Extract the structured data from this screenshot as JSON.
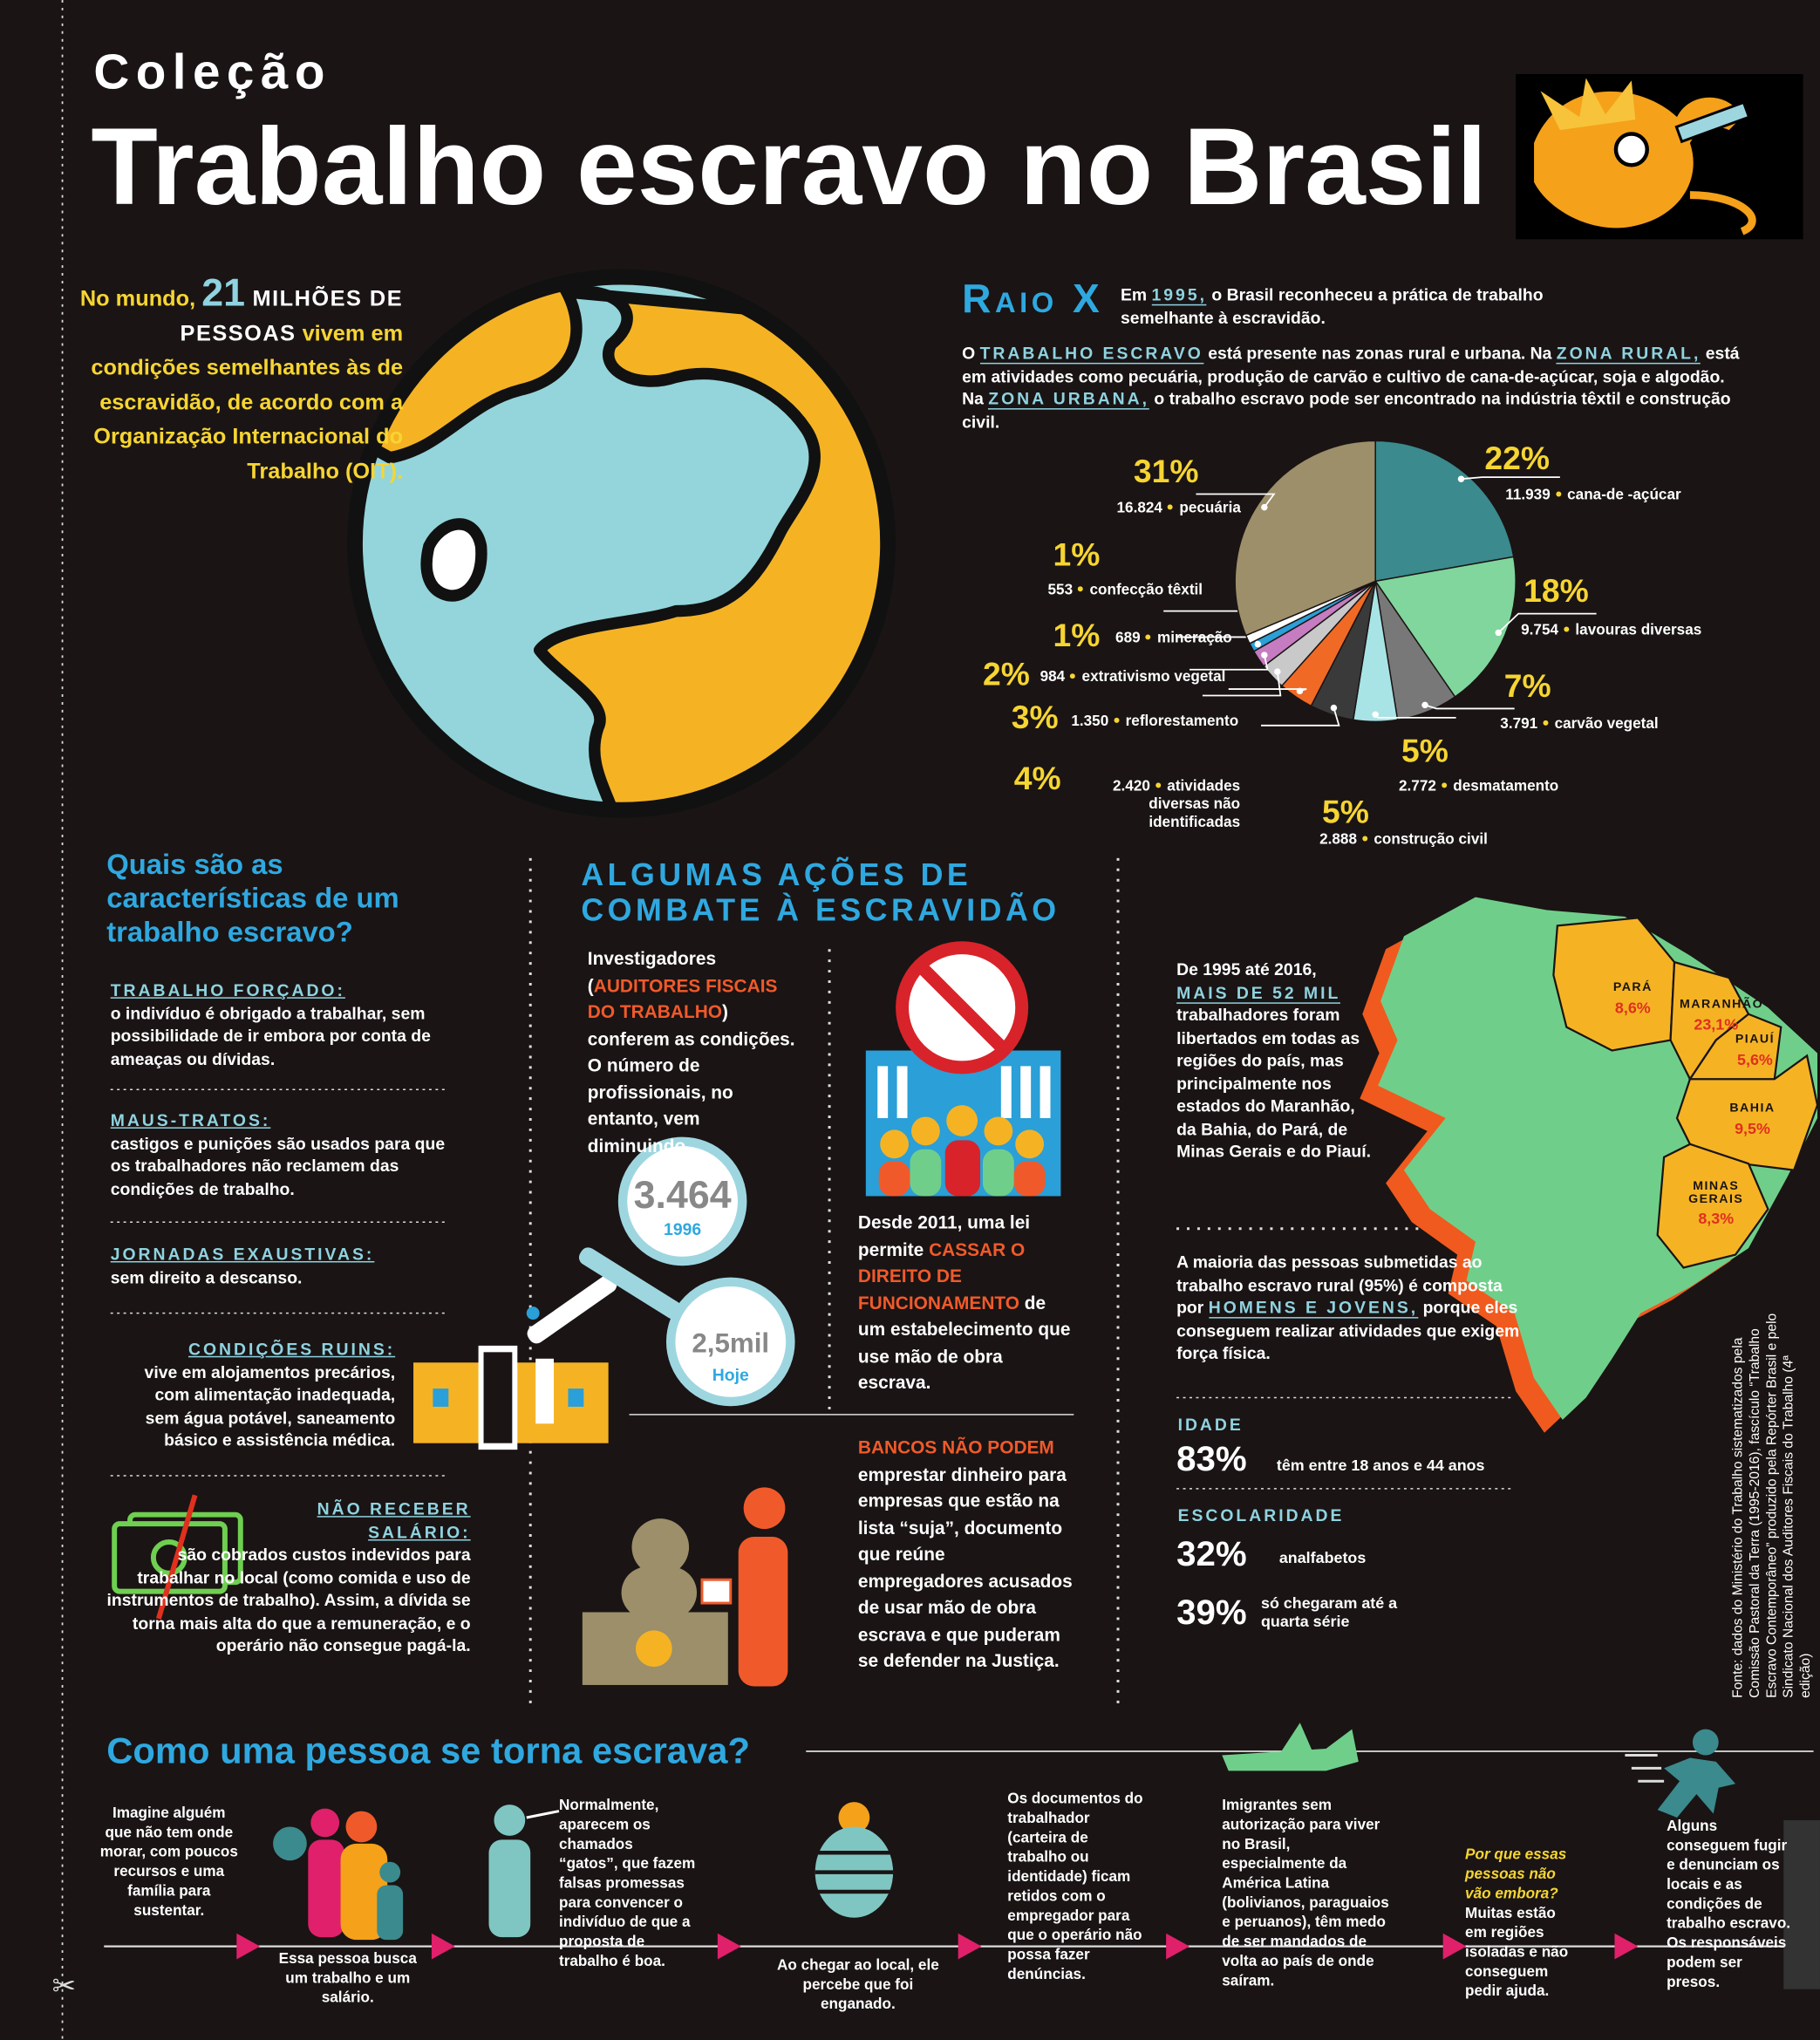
{
  "header": {
    "kicker": "Coleção",
    "title": "Trabalho escravo no Brasil"
  },
  "intro": {
    "a": "No mundo, ",
    "num": "21",
    "b": " MILHÕES DE PESSOAS",
    "c": " vivem em condições semelhantes às de escravidão, de acordo com a Organização Internacional do Trabalho (OIT)."
  },
  "raio_x": {
    "title": "Raio X",
    "p1": [
      "Em ",
      "1995,",
      " o Brasil reconheceu a prática de trabalho semelhante à escravidão."
    ],
    "p2": [
      "O ",
      "TRABALHO ESCRAVO",
      " está presente nas zonas rural e urbana.  Na ",
      "ZONA RURAL,",
      " está em atividades como pecuária, produção de carvão e cultivo de cana-de-açúcar, soja e algodão.  Na ",
      "ZONA URBANA,",
      " o trabalho escravo pode ser encontrado na indústria têxtil e construção civil."
    ]
  },
  "chart_data": {
    "type": "pie",
    "categories": [
      "cana-de -açúcar",
      "lavouras diversas",
      "carvão vegetal",
      "desmatamento",
      "construção civil",
      "atividades diversas não identificadas",
      "reflorestamento",
      "extrativismo vegetal",
      "mineração",
      "confecção têxtil",
      "pecuária"
    ],
    "values": [
      22,
      18,
      7,
      5,
      5,
      4,
      3,
      2,
      1,
      1,
      31
    ],
    "value_labels": [
      "22%",
      "18%",
      "7%",
      "5%",
      "5%",
      "4%",
      "3%",
      "2%",
      "1%",
      "1%",
      "31%"
    ],
    "count_labels": [
      "11.939",
      "9.754",
      "3.791",
      "2.772",
      "2.888",
      "2.420",
      "1.350",
      "984",
      "689",
      "553",
      "16.824"
    ],
    "colors": [
      "#3b8a8d",
      "#80d69c",
      "#787878",
      "#a8e4e6",
      "#3a3a3a",
      "#f06a25",
      "#c9c9c9",
      "#c57cc0",
      "#2a9fd8",
      "#ffffff",
      "#9c8f6a"
    ]
  },
  "characteristics": {
    "title": "Quais são as características de um trabalho escravo?",
    "items": [
      {
        "term": "TRABALHO FORÇADO:",
        "text": "o indivíduo é obrigado a trabalhar, sem possibilidade de ir embora por conta de ameaças ou dívidas."
      },
      {
        "term": "MAUS-TRATOS:",
        "text": "castigos e punições são usados para que os trabalhadores não reclamem das condições de trabalho."
      },
      {
        "term": "JORNADAS EXAUSTIVAS:",
        "text": "sem direito a descanso."
      },
      {
        "term": "CONDIÇÕES RUINS:",
        "text": "vive em alojamentos precários, com alimentação inadequada, sem água potável, saneamento básico e assistência médica."
      },
      {
        "term": "NÃO RECEBER SALÁRIO:",
        "text": "são cobrados custos indevidos para trabalhar no local (como comida e uso de instrumentos de trabalho). Assim, a dívida se torna mais alta do que a remuneração, e o operário não consegue pagá-la."
      }
    ]
  },
  "actions": {
    "title": "ALGUMAS AÇÕES DE COMBATE À ESCRAVIDÃO",
    "investigators": [
      "Investigadores (",
      "AUDITORES FISCAIS DO TRABALHO",
      ") conferem as condições. O número de profissionais, no entanto, vem diminuindo."
    ],
    "count_1996": "3.464",
    "year_1996": "1996",
    "count_today": "2,5mil",
    "today": "Hoje",
    "law": [
      "Desde 2011, uma lei permite ",
      "CASSAR O DIREITO DE FUNCIONAMENTO",
      " de um estabelecimento que use mão de obra escrava."
    ],
    "banks": {
      "highlight": "BANCOS NÃO PODEM",
      "text": " emprestar dinheiro para empresas que estão na lista “suja”, documento que reúne empregadores acusados de usar mão de obra escrava e que puderam se defender na Justiça."
    }
  },
  "brazil": {
    "p1": [
      "De 1995 até 2016, ",
      "MAIS DE 52 MIL",
      " trabalhadores foram libertados em todas as regiões do país, mas principalmente nos estados do Maranhão, da Bahia, do Pará, de Minas Gerais e do Piauí."
    ],
    "p2": [
      "A maioria das pessoas submetidas ao trabalho escravo rural (95%) é composta por ",
      "HOMENS E JOVENS,",
      " porque eles conseguem realizar  atividades que exigem força física."
    ],
    "states": [
      {
        "name": "PARÁ",
        "pct": "8,6%"
      },
      {
        "name": "MARANHÃO",
        "pct": "23,1%"
      },
      {
        "name": "PIAUÍ",
        "pct": "5,6%"
      },
      {
        "name": "BAHIA",
        "pct": "9,5%"
      },
      {
        "name": "MINAS GERAIS",
        "pct": "8,3%"
      }
    ],
    "age": {
      "title": "IDADE",
      "pct": "83%",
      "text": "têm entre 18 anos e 44 anos"
    },
    "education": {
      "title": "ESCOLARIDADE",
      "items": [
        {
          "pct": "32%",
          "text": "analfabetos"
        },
        {
          "pct": "39%",
          "text": "só chegaram até a quarta série"
        }
      ]
    },
    "source": "Fonte: dados do Ministério do Trabalho sistematizados pela Comissão Pastoral da Terra (1995-2016), fascículo “Trabalho Escravo Contemporâneo” produzido pela Repórter Brasil e pelo Sindicato Nacional dos Auditores Fiscais do Trabalho (4ª edição)"
  },
  "process": {
    "title": "Como uma pessoa se torna escrava?",
    "steps": [
      "Imagine alguém que não tem onde morar, com poucos recursos e uma família para sustentar.",
      "Essa pessoa busca um trabalho e um salário.",
      "Normalmente, aparecem os chamados “gatos”, que fazem falsas promessas para convencer o indivíduo de que a proposta de trabalho é boa.",
      "Ao chegar ao local, ele percebe que foi enganado.",
      "Os documentos do trabalhador (carteira de trabalho ou identidade) ficam retidos com o empregador para que o operário não possa fazer denúncias.",
      "Imigrantes sem autorização para viver no Brasil, especialmente da América Latina (bolivianos, paraguaios e peruanos), têm medo de ser mandados de volta ao país de onde saíram.",
      "Alguns conseguem fugir e denunciam os locais e as condições de trabalho escravo. Os responsáveis podem ser presos."
    ],
    "why": {
      "question": "Por que essas pessoas não vão embora?",
      "text": "Muitas estão em regiões isoladas e não conseguem pedir ajuda."
    }
  }
}
